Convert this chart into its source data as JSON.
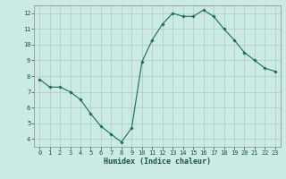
{
  "x": [
    0,
    1,
    2,
    3,
    4,
    5,
    6,
    7,
    8,
    9,
    10,
    11,
    12,
    13,
    14,
    15,
    16,
    17,
    18,
    19,
    20,
    21,
    22,
    23
  ],
  "y": [
    7.8,
    7.3,
    7.3,
    7.0,
    6.5,
    5.6,
    4.8,
    4.3,
    3.8,
    4.7,
    8.9,
    10.3,
    11.3,
    12.0,
    11.8,
    11.8,
    12.2,
    11.8,
    11.0,
    10.3,
    9.5,
    9.0,
    8.5,
    8.3
  ],
  "line_color": "#1a6b5a",
  "marker": "D",
  "marker_size": 1.8,
  "background_color": "#cceae4",
  "grid_color": "#aaccc4",
  "xlabel": "Humidex (Indice chaleur)",
  "xlim": [
    -0.5,
    23.5
  ],
  "ylim": [
    3.5,
    12.5
  ],
  "yticks": [
    4,
    5,
    6,
    7,
    8,
    9,
    10,
    11,
    12
  ],
  "xticks": [
    0,
    1,
    2,
    3,
    4,
    5,
    6,
    7,
    8,
    9,
    10,
    11,
    12,
    13,
    14,
    15,
    16,
    17,
    18,
    19,
    20,
    21,
    22,
    23
  ],
  "tick_fontsize": 5.0,
  "label_fontsize": 6.0
}
